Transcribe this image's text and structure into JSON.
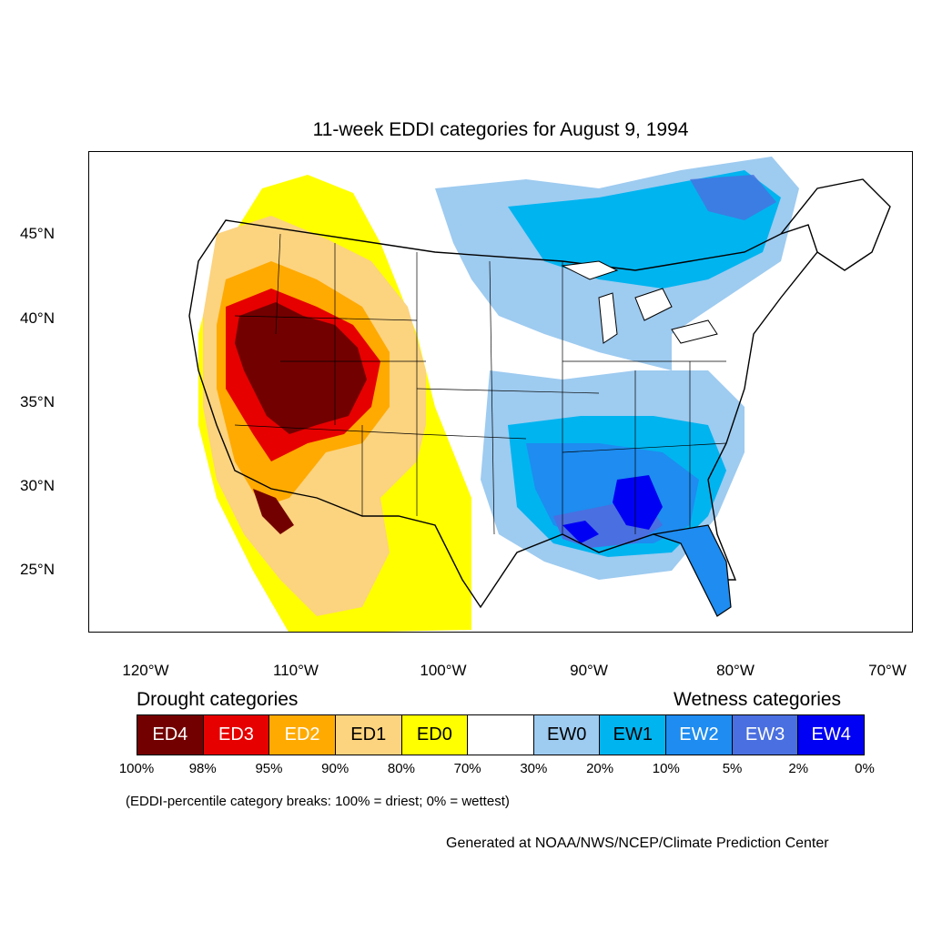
{
  "map": {
    "title": "11-week EDDI categories for August 9, 1994",
    "lat_labels": [
      "45°N",
      "40°N",
      "35°N",
      "30°N",
      "25°N"
    ],
    "lon_labels": [
      "120°W",
      "110°W",
      "100°W",
      "90°W",
      "80°W",
      "70°W"
    ]
  },
  "legend": {
    "drought_title": "Drought categories",
    "wetness_title": "Wetness categories",
    "categories": [
      {
        "label": "ED4",
        "color": "#730000"
      },
      {
        "label": "ED3",
        "color": "#e60000"
      },
      {
        "label": "ED2",
        "color": "#ffaa00"
      },
      {
        "label": "ED1",
        "color": "#fcd37f"
      },
      {
        "label": "ED0",
        "color": "#ffff00"
      },
      {
        "label": "",
        "color": "#ffffff"
      },
      {
        "label": "EW0",
        "color": "#9ecbf0"
      },
      {
        "label": "EW1",
        "color": "#00b4f0"
      },
      {
        "label": "EW2",
        "color": "#1e8cf0"
      },
      {
        "label": "EW3",
        "color": "#4a6fe0"
      },
      {
        "label": "EW4",
        "color": "#0000f5"
      }
    ],
    "percent_breaks": [
      "100%",
      "98%",
      "95%",
      "90%",
      "80%",
      "70%",
      "30%",
      "20%",
      "10%",
      "5%",
      "2%",
      "0%"
    ],
    "note": "(EDDI-percentile category breaks: 100% = driest; 0% = wettest)"
  },
  "credit": "Generated at NOAA/NWS/NCEP/Climate Prediction Center"
}
